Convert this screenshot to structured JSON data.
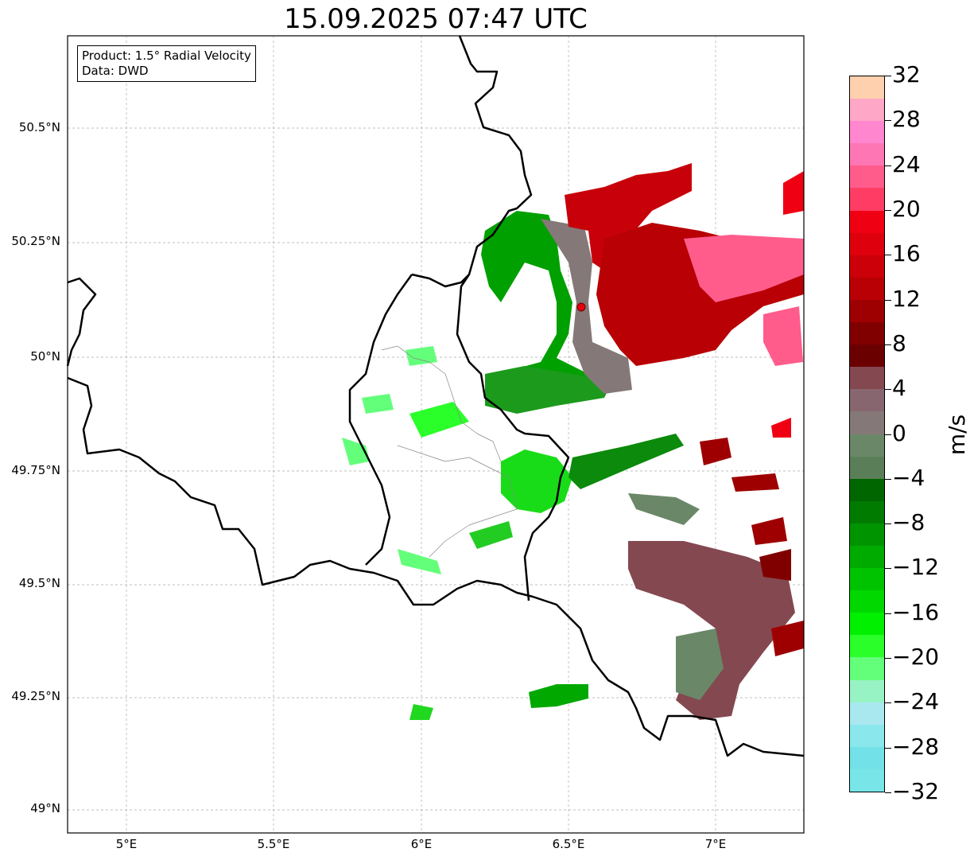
{
  "title": "15.09.2025 07:47 UTC",
  "info": {
    "line1": "Product: 1.5° Radial Velocity",
    "line2": "Data: DWD"
  },
  "lat_labels": [
    "50.5°N",
    "50.25°N",
    "50°N",
    "49.75°N",
    "49.5°N",
    "49.25°N",
    "49°N"
  ],
  "lon_labels": [
    "5°E",
    "5.5°E",
    "6°E",
    "6.5°E",
    "7°E"
  ],
  "colorbar": {
    "units": "m/s",
    "tick_labels": [
      "32",
      "28",
      "24",
      "20",
      "16",
      "12",
      "8",
      "4",
      "0",
      "−4",
      "−8",
      "−12",
      "−16",
      "−20",
      "−24",
      "−28",
      "−32"
    ],
    "colors_top_to_bottom": [
      "#ffd0ae",
      "#ffa7c6",
      "#ff86cf",
      "#ff76b4",
      "#ff5c8c",
      "#ff3d64",
      "#f00013",
      "#de000c",
      "#cc0008",
      "#b80005",
      "#9e0002",
      "#800000",
      "#6b0000",
      "#844850",
      "#886670",
      "#857878",
      "#6a8868",
      "#5a7f58",
      "#006600",
      "#007b00",
      "#009400",
      "#00ab00",
      "#00c300",
      "#00d800",
      "#00f000",
      "#2aff2a",
      "#64ff7a",
      "#98f3c4",
      "#aae8f0",
      "#8ae8ec",
      "#72e2e8",
      "#78e6e8"
    ]
  },
  "map": {
    "lon_range": [
      4.8,
      7.3
    ],
    "lat_range": [
      48.95,
      50.7
    ],
    "radar_site": {
      "lon": 6.55,
      "lat": 50.11,
      "color": "#e8000b"
    }
  }
}
